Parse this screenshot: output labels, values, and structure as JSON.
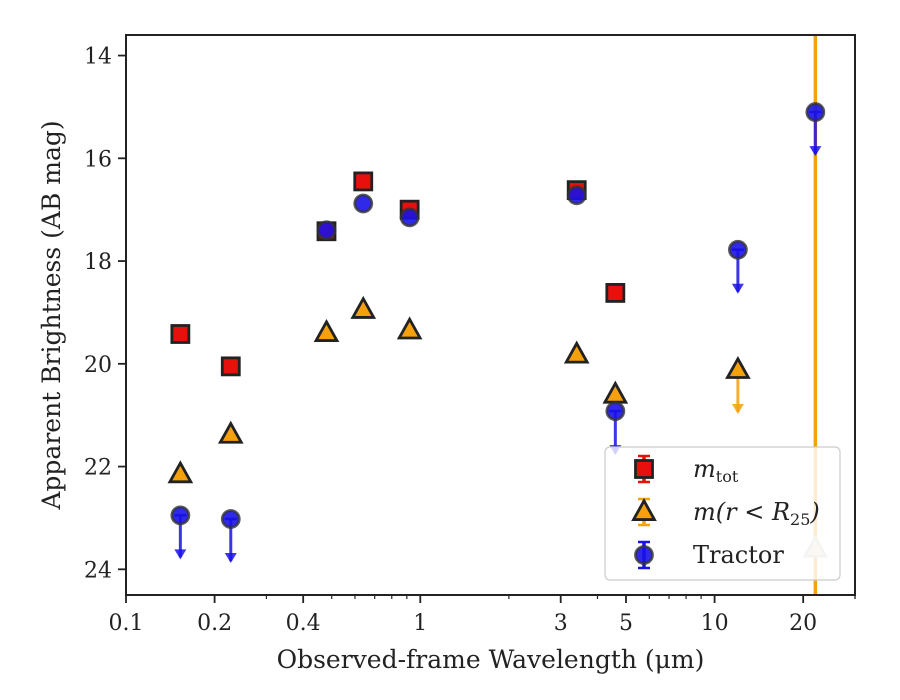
{
  "chart_data": {
    "type": "scatter",
    "xlabel": "Observed-frame Wavelength (μm)",
    "ylabel": "Apparent Brightness (AB mag)",
    "xscale": "log",
    "xlim": [
      0.1,
      30
    ],
    "ylim": [
      24.5,
      13.6
    ],
    "y_inverted": true,
    "grid": false,
    "legend_position": "lower-right",
    "x_ticks": [
      {
        "value": 0.1,
        "label": "0.1"
      },
      {
        "value": 0.2,
        "label": "0.2"
      },
      {
        "value": 0.4,
        "label": "0.4"
      },
      {
        "value": 1,
        "label": "1"
      },
      {
        "value": 3,
        "label": "3"
      },
      {
        "value": 5,
        "label": "5"
      },
      {
        "value": 10,
        "label": "10"
      },
      {
        "value": 20,
        "label": "20"
      }
    ],
    "y_ticks": [
      {
        "value": 14,
        "label": "14"
      },
      {
        "value": 16,
        "label": "16"
      },
      {
        "value": 18,
        "label": "18"
      },
      {
        "value": 20,
        "label": "20"
      },
      {
        "value": 22,
        "label": "22"
      },
      {
        "value": 24,
        "label": "24"
      }
    ],
    "series": [
      {
        "name": "m_tot",
        "legend_label": "m",
        "legend_sub": "tot",
        "marker": "square",
        "color": "#e8100c",
        "points": [
          {
            "x": 0.153,
            "y": 19.42
          },
          {
            "x": 0.227,
            "y": 20.05
          },
          {
            "x": 0.48,
            "y": 17.42
          },
          {
            "x": 0.64,
            "y": 16.45
          },
          {
            "x": 0.92,
            "y": 17.0
          },
          {
            "x": 3.4,
            "y": 16.62
          },
          {
            "x": 4.6,
            "y": 18.62
          }
        ]
      },
      {
        "name": "m(r<R25)",
        "legend_label": "m(r < R",
        "legend_sub": "25",
        "legend_tail": ")",
        "marker": "triangle",
        "color": "#f5a10e",
        "points": [
          {
            "x": 0.153,
            "y": 22.15,
            "err": 0.12
          },
          {
            "x": 0.227,
            "y": 21.38
          },
          {
            "x": 0.48,
            "y": 19.4
          },
          {
            "x": 0.64,
            "y": 18.95
          },
          {
            "x": 0.92,
            "y": 19.35
          },
          {
            "x": 3.4,
            "y": 19.82
          },
          {
            "x": 4.6,
            "y": 20.6,
            "err": 0.18
          },
          {
            "x": 12.0,
            "y": 20.12,
            "upper_limit": true
          },
          {
            "x": 22.0,
            "y": 23.6,
            "err": 25
          }
        ]
      },
      {
        "name": "Tractor",
        "legend_label": "Tractor",
        "marker": "circle",
        "color": "#1a12e6",
        "points": [
          {
            "x": 0.153,
            "y": 22.95,
            "upper_limit": true
          },
          {
            "x": 0.227,
            "y": 23.02,
            "upper_limit": true
          },
          {
            "x": 0.48,
            "y": 17.4
          },
          {
            "x": 0.64,
            "y": 16.88
          },
          {
            "x": 0.92,
            "y": 17.15
          },
          {
            "x": 3.4,
            "y": 16.72
          },
          {
            "x": 4.6,
            "y": 20.92,
            "upper_limit": true
          },
          {
            "x": 12.0,
            "y": 17.78,
            "upper_limit": true
          },
          {
            "x": 22.0,
            "y": 15.1,
            "upper_limit": true
          }
        ]
      }
    ]
  }
}
